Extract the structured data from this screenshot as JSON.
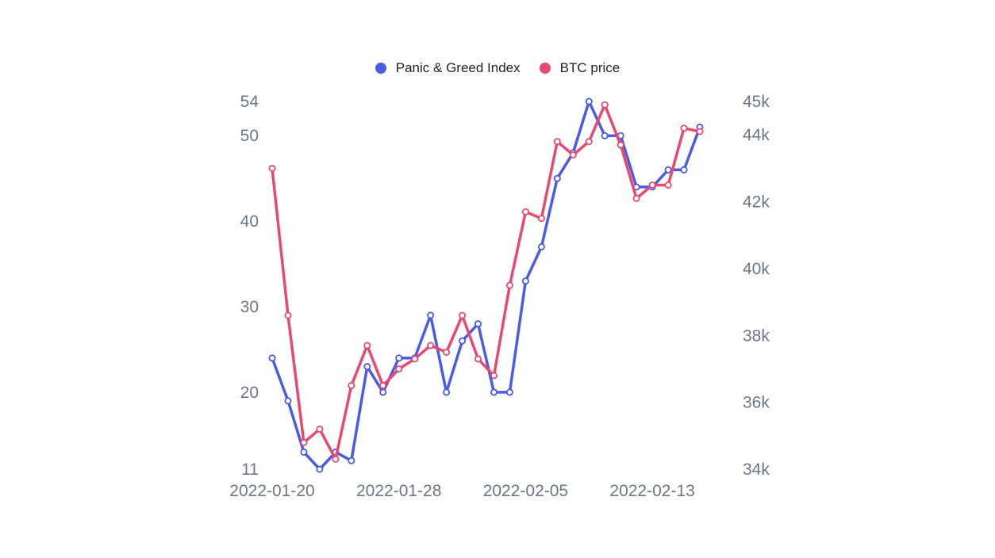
{
  "chart_data": {
    "type": "line",
    "x": [
      "2022-01-20",
      "2022-01-21",
      "2022-01-22",
      "2022-01-23",
      "2022-01-24",
      "2022-01-25",
      "2022-01-26",
      "2022-01-27",
      "2022-01-28",
      "2022-01-29",
      "2022-01-30",
      "2022-01-31",
      "2022-02-01",
      "2022-02-02",
      "2022-02-03",
      "2022-02-04",
      "2022-02-05",
      "2022-02-06",
      "2022-02-07",
      "2022-02-08",
      "2022-02-09",
      "2022-02-10",
      "2022-02-11",
      "2022-02-12",
      "2022-02-13",
      "2022-02-14",
      "2022-02-15",
      "2022-02-16"
    ],
    "x_tick_labels": [
      "2022-01-20",
      "2022-01-28",
      "2022-02-05",
      "2022-02-13"
    ],
    "y_left_ticks": [
      "54",
      "50",
      "40",
      "30",
      "20",
      "11"
    ],
    "y_left_lim": [
      11,
      54
    ],
    "y_right_ticks": [
      "45k",
      "44k",
      "42k",
      "40k",
      "38k",
      "36k",
      "34k"
    ],
    "y_right_lim": [
      34000,
      45000
    ],
    "series": [
      {
        "name": "Panic & Greed Index",
        "axis": "left",
        "color": "#4a5be6",
        "values": [
          24,
          19,
          13,
          11,
          13,
          12,
          23,
          20,
          24,
          24,
          29,
          20,
          26,
          28,
          20,
          20,
          33,
          37,
          45,
          48,
          54,
          50,
          50,
          44,
          44,
          46,
          46,
          51
        ]
      },
      {
        "name": "BTC price",
        "axis": "right",
        "color": "#e8496f",
        "values": [
          43000,
          38600,
          34800,
          35200,
          34300,
          36500,
          37700,
          36500,
          37000,
          37300,
          37700,
          37500,
          38600,
          37300,
          36800,
          39500,
          41700,
          41500,
          43800,
          43400,
          43800,
          44900,
          43700,
          42100,
          42500,
          42500,
          44200,
          44100
        ]
      }
    ],
    "legend_position": "top-center",
    "grid": false
  }
}
